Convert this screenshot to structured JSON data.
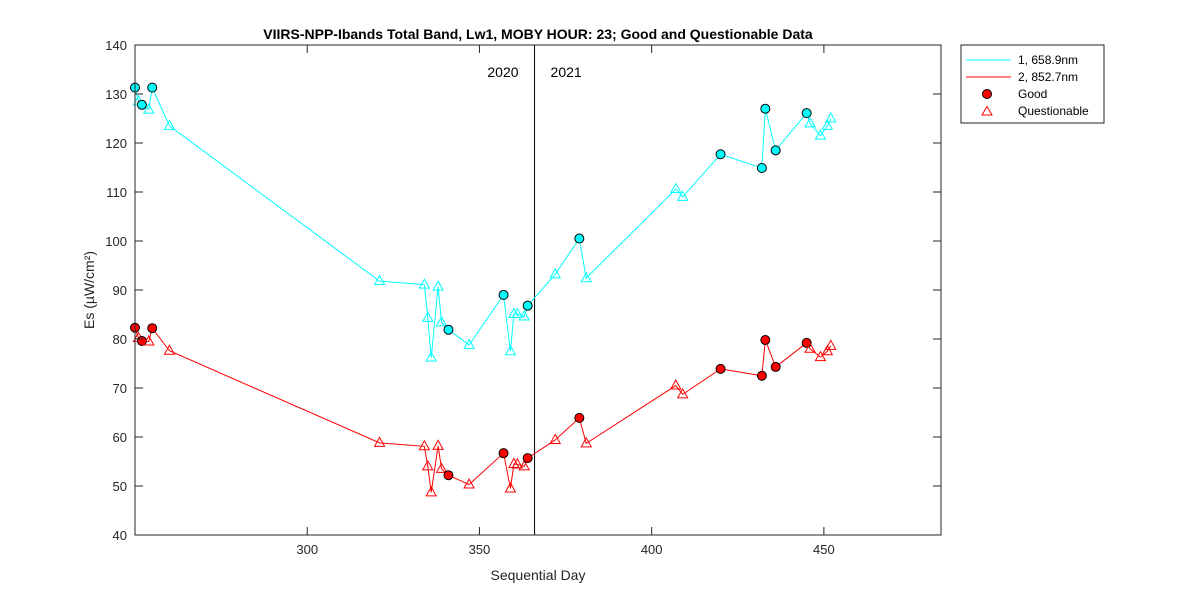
{
  "chart_data": {
    "type": "line",
    "title": "VIIRS-NPP-Ibands Total Band,  Lw1, MOBY HOUR: 23;  Good and Questionable Data",
    "xlabel": "Sequential Day",
    "ylabel": "Es (µW/cm²)",
    "xlim": [
      250,
      484
    ],
    "ylim": [
      40,
      140
    ],
    "xticks": [
      300,
      350,
      400,
      450
    ],
    "yticks": [
      40,
      50,
      60,
      70,
      80,
      90,
      100,
      110,
      120,
      130,
      140
    ],
    "year_divider": {
      "x": 366,
      "left_label": "2020",
      "right_label": "2021"
    },
    "legend": {
      "position": "outside-top-right",
      "entries": [
        "1, 658.9nm",
        "2, 852.7nm",
        "Good",
        "Questionable"
      ]
    },
    "series": [
      {
        "name": "1, 658.9nm",
        "color": "#00FFFF",
        "points": [
          {
            "x": 250,
            "y": 131.3,
            "q": "good"
          },
          {
            "x": 251,
            "y": 128.5,
            "q": "questionable"
          },
          {
            "x": 252,
            "y": 127.8,
            "q": "good"
          },
          {
            "x": 254,
            "y": 126.8,
            "q": "questionable"
          },
          {
            "x": 255,
            "y": 131.3,
            "q": "good"
          },
          {
            "x": 260,
            "y": 123.5,
            "q": "questionable"
          },
          {
            "x": 321,
            "y": 91.8,
            "q": "questionable"
          },
          {
            "x": 334,
            "y": 91.1,
            "q": "questionable"
          },
          {
            "x": 335,
            "y": 84.3,
            "q": "questionable"
          },
          {
            "x": 336,
            "y": 76.2,
            "q": "questionable"
          },
          {
            "x": 338,
            "y": 90.7,
            "q": "questionable"
          },
          {
            "x": 339,
            "y": 83.4,
            "q": "questionable"
          },
          {
            "x": 341,
            "y": 81.9,
            "q": "good"
          },
          {
            "x": 347,
            "y": 78.8,
            "q": "questionable"
          },
          {
            "x": 357,
            "y": 89.0,
            "q": "good"
          },
          {
            "x": 359,
            "y": 77.5,
            "q": "questionable"
          },
          {
            "x": 360,
            "y": 85.1,
            "q": "questionable"
          },
          {
            "x": 361,
            "y": 85.1,
            "q": "questionable"
          },
          {
            "x": 363,
            "y": 84.6,
            "q": "questionable"
          },
          {
            "x": 364,
            "y": 86.8,
            "q": "good"
          },
          {
            "x": 372,
            "y": 93.2,
            "q": "questionable"
          },
          {
            "x": 379,
            "y": 100.5,
            "q": "good"
          },
          {
            "x": 381,
            "y": 92.4,
            "q": "questionable"
          },
          {
            "x": 407,
            "y": 110.6,
            "q": "questionable"
          },
          {
            "x": 409,
            "y": 109.0,
            "q": "questionable"
          },
          {
            "x": 420,
            "y": 117.7,
            "q": "good"
          },
          {
            "x": 432,
            "y": 114.9,
            "q": "good"
          },
          {
            "x": 433,
            "y": 127.0,
            "q": "good"
          },
          {
            "x": 436,
            "y": 118.5,
            "q": "good"
          },
          {
            "x": 445,
            "y": 126.1,
            "q": "good"
          },
          {
            "x": 446,
            "y": 124.0,
            "q": "questionable"
          },
          {
            "x": 449,
            "y": 121.5,
            "q": "questionable"
          },
          {
            "x": 451,
            "y": 123.5,
            "q": "questionable"
          },
          {
            "x": 452,
            "y": 125.0,
            "q": "questionable"
          }
        ]
      },
      {
        "name": "2, 852.7nm",
        "color": "#FF0000",
        "points": [
          {
            "x": 250,
            "y": 82.3,
            "q": "good"
          },
          {
            "x": 251,
            "y": 80.2,
            "q": "questionable"
          },
          {
            "x": 252,
            "y": 79.6,
            "q": "good"
          },
          {
            "x": 254,
            "y": 79.5,
            "q": "questionable"
          },
          {
            "x": 255,
            "y": 82.2,
            "q": "good"
          },
          {
            "x": 260,
            "y": 77.6,
            "q": "questionable"
          },
          {
            "x": 321,
            "y": 58.8,
            "q": "questionable"
          },
          {
            "x": 334,
            "y": 58.1,
            "q": "questionable"
          },
          {
            "x": 335,
            "y": 54.0,
            "q": "questionable"
          },
          {
            "x": 336,
            "y": 48.7,
            "q": "questionable"
          },
          {
            "x": 338,
            "y": 58.2,
            "q": "questionable"
          },
          {
            "x": 339,
            "y": 53.5,
            "q": "questionable"
          },
          {
            "x": 341,
            "y": 52.2,
            "q": "good"
          },
          {
            "x": 347,
            "y": 50.3,
            "q": "questionable"
          },
          {
            "x": 357,
            "y": 56.7,
            "q": "good"
          },
          {
            "x": 359,
            "y": 49.5,
            "q": "questionable"
          },
          {
            "x": 360,
            "y": 54.5,
            "q": "questionable"
          },
          {
            "x": 361,
            "y": 54.4,
            "q": "questionable"
          },
          {
            "x": 363,
            "y": 54.0,
            "q": "questionable"
          },
          {
            "x": 364,
            "y": 55.7,
            "q": "good"
          },
          {
            "x": 372,
            "y": 59.4,
            "q": "questionable"
          },
          {
            "x": 379,
            "y": 63.9,
            "q": "good"
          },
          {
            "x": 381,
            "y": 58.7,
            "q": "questionable"
          },
          {
            "x": 407,
            "y": 70.5,
            "q": "questionable"
          },
          {
            "x": 409,
            "y": 68.7,
            "q": "questionable"
          },
          {
            "x": 420,
            "y": 73.9,
            "q": "good"
          },
          {
            "x": 432,
            "y": 72.5,
            "q": "good"
          },
          {
            "x": 433,
            "y": 79.8,
            "q": "good"
          },
          {
            "x": 436,
            "y": 74.3,
            "q": "good"
          },
          {
            "x": 445,
            "y": 79.2,
            "q": "good"
          },
          {
            "x": 446,
            "y": 78.0,
            "q": "questionable"
          },
          {
            "x": 449,
            "y": 76.3,
            "q": "questionable"
          },
          {
            "x": 451,
            "y": 77.5,
            "q": "questionable"
          },
          {
            "x": 452,
            "y": 78.6,
            "q": "questionable"
          }
        ]
      }
    ]
  }
}
